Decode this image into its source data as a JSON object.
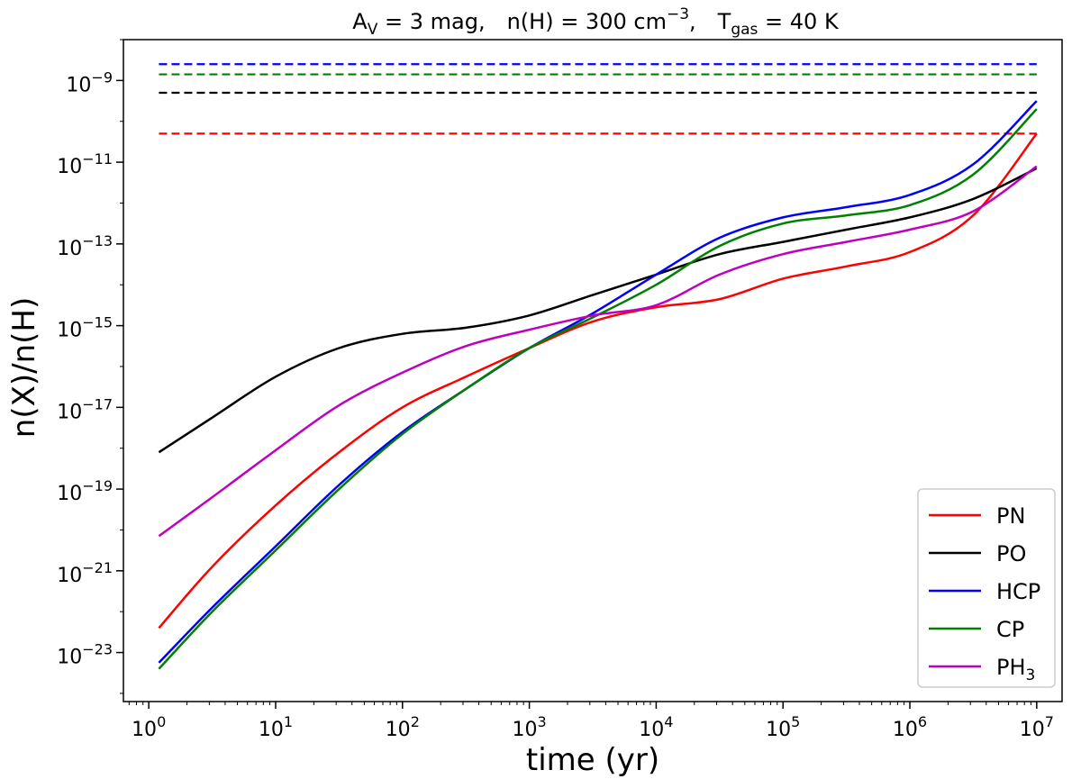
{
  "chart_data": {
    "type": "line",
    "title": {
      "av_label": "A",
      "av_sub": "V",
      "av_value": " = 3 mag,",
      "nh_label": "n(H) = 300 cm",
      "nh_exp": "−3",
      "nh_comma": ",",
      "t_label": "T",
      "t_sub": "gas",
      "t_value": " = 40 K"
    },
    "xlabel": "time (yr)",
    "ylabel": "n(X)/n(H)",
    "xscale": "log",
    "yscale": "log",
    "xlim_log10": [
      -0.2,
      7.2
    ],
    "ylim_log10": [
      -24.2,
      -8.0
    ],
    "x_ticks": [
      {
        "base": "10",
        "exp": "0",
        "log": 0
      },
      {
        "base": "10",
        "exp": "1",
        "log": 1
      },
      {
        "base": "10",
        "exp": "2",
        "log": 2
      },
      {
        "base": "10",
        "exp": "3",
        "log": 3
      },
      {
        "base": "10",
        "exp": "4",
        "log": 4
      },
      {
        "base": "10",
        "exp": "5",
        "log": 5
      },
      {
        "base": "10",
        "exp": "6",
        "log": 6
      },
      {
        "base": "10",
        "exp": "7",
        "log": 7
      }
    ],
    "y_ticks": [
      {
        "base": "10",
        "exp": "−9",
        "log": -9
      },
      {
        "base": "10",
        "exp": "−11",
        "log": -11
      },
      {
        "base": "10",
        "exp": "−13",
        "log": -13
      },
      {
        "base": "10",
        "exp": "−15",
        "log": -15
      },
      {
        "base": "10",
        "exp": "−17",
        "log": -17
      },
      {
        "base": "10",
        "exp": "−19",
        "log": -19
      },
      {
        "base": "10",
        "exp": "−21",
        "log": -21
      },
      {
        "base": "10",
        "exp": "−23",
        "log": -23
      }
    ],
    "x_log10": [
      0.08,
      0.5,
      1.0,
      1.5,
      2.0,
      2.5,
      3.0,
      3.5,
      4.0,
      4.5,
      5.0,
      5.5,
      6.0,
      6.5,
      7.0
    ],
    "series": [
      {
        "name": "PN",
        "label": "PN",
        "color": "#ff0000",
        "dashed_level_log10": -10.3,
        "y_log10": [
          -22.4,
          -20.9,
          -19.4,
          -18.1,
          -17.0,
          -16.25,
          -15.55,
          -14.9,
          -14.55,
          -14.35,
          -13.85,
          -13.55,
          -13.2,
          -12.3,
          -10.3
        ]
      },
      {
        "name": "PO",
        "label": "PO",
        "color": "#000000",
        "dashed_level_log10": -9.3,
        "y_log10": [
          -18.1,
          -17.25,
          -16.25,
          -15.55,
          -15.2,
          -15.05,
          -14.75,
          -14.25,
          -13.75,
          -13.25,
          -12.95,
          -12.65,
          -12.35,
          -11.9,
          -11.15
        ]
      },
      {
        "name": "HCP",
        "label": "HCP",
        "color": "#0000ff",
        "dashed_level_log10": -8.6,
        "y_log10": [
          -23.25,
          -21.9,
          -20.4,
          -18.9,
          -17.6,
          -16.55,
          -15.55,
          -14.7,
          -13.75,
          -12.85,
          -12.35,
          -12.1,
          -11.8,
          -11.05,
          -9.5
        ]
      },
      {
        "name": "CP",
        "label": "CP",
        "color": "#008000",
        "dashed_level_log10": -8.85,
        "y_log10": [
          -23.4,
          -22.0,
          -20.5,
          -19.0,
          -17.65,
          -16.55,
          -15.55,
          -14.8,
          -14.0,
          -13.05,
          -12.5,
          -12.3,
          -12.05,
          -11.3,
          -9.7
        ]
      },
      {
        "name": "PH3",
        "label": "PH",
        "label_sub": "3",
        "color": "#bf00bf",
        "dashed_level_log10": null,
        "y_log10": [
          -20.15,
          -19.2,
          -18.05,
          -16.95,
          -16.15,
          -15.5,
          -15.1,
          -14.75,
          -14.5,
          -13.75,
          -13.25,
          -12.95,
          -12.65,
          -12.2,
          -11.1
        ]
      }
    ],
    "legend_position": "lower-right"
  }
}
